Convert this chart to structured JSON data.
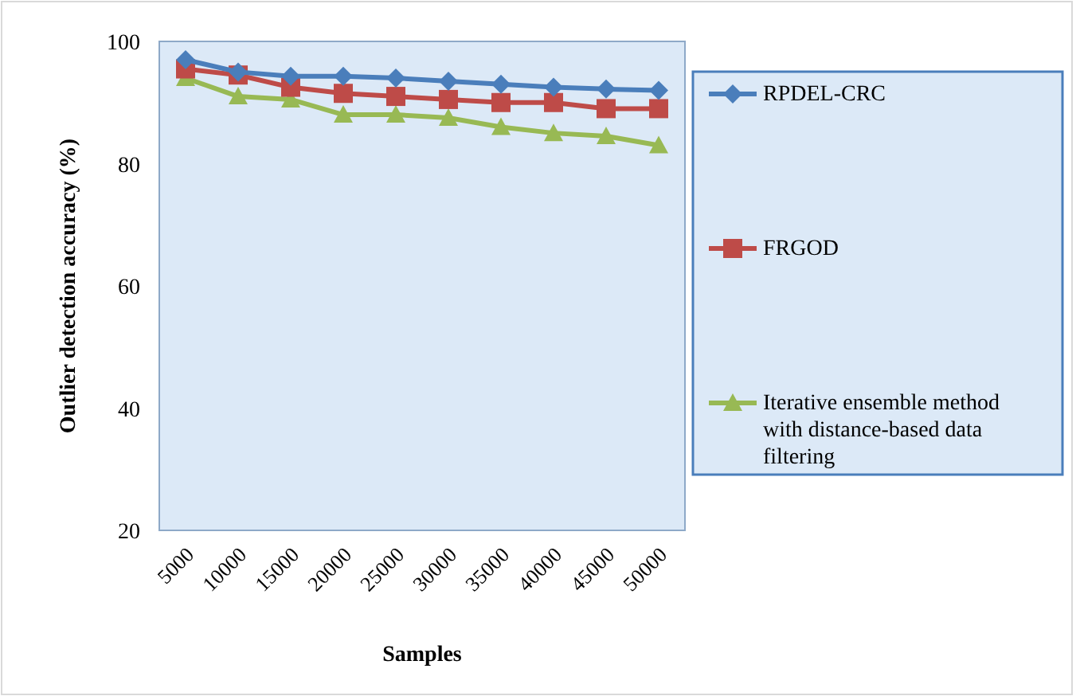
{
  "chart_data": {
    "type": "line",
    "xlabel": "Samples",
    "ylabel": "Outlier detection accuracy (%)",
    "categories": [
      "5000",
      "10000",
      "15000",
      "20000",
      "25000",
      "30000",
      "35000",
      "40000",
      "45000",
      "50000"
    ],
    "series": [
      {
        "name": "RPDEL-CRC",
        "color": "#4a7ebb",
        "marker": "diamond",
        "values": [
          97,
          95,
          94.3,
          94.3,
          94,
          93.5,
          93,
          92.5,
          92.2,
          92
        ]
      },
      {
        "name": "FRGOD",
        "color": "#be4b48",
        "marker": "square",
        "values": [
          95.5,
          94.5,
          92.5,
          91.5,
          91,
          90.5,
          90,
          90,
          89,
          89
        ]
      },
      {
        "name": "Iterative ensemble method with distance-based data filtering",
        "color": "#98b954",
        "marker": "triangle",
        "values": [
          94,
          91,
          90.5,
          88,
          88,
          87.5,
          86,
          85,
          84.5,
          83
        ]
      }
    ],
    "ylim": [
      20,
      100
    ],
    "yticks": [
      20,
      40,
      60,
      80,
      100
    ],
    "grid": false,
    "legend": "right"
  }
}
